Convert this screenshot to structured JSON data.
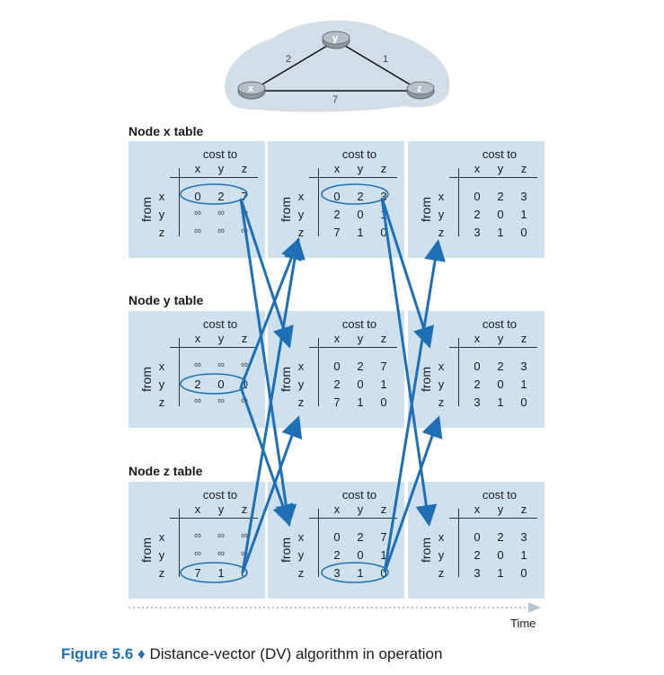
{
  "network": {
    "nodes": [
      {
        "name": "x"
      },
      {
        "name": "y"
      },
      {
        "name": "z"
      }
    ],
    "links": [
      {
        "from": "x",
        "to": "y",
        "cost": "2"
      },
      {
        "from": "y",
        "to": "z",
        "cost": "1"
      },
      {
        "from": "x",
        "to": "z",
        "cost": "7"
      }
    ]
  },
  "labels": {
    "cost_to": "cost to",
    "from": "from",
    "cols": [
      "x",
      "y",
      "z"
    ],
    "rows": [
      "x",
      "y",
      "z"
    ],
    "infinity": "∞"
  },
  "sections": [
    {
      "title": "Node x table",
      "tables": [
        [
          [
            "0",
            "2",
            "7"
          ],
          [
            "∞",
            "∞",
            "∞"
          ],
          [
            "∞",
            "∞",
            "∞"
          ]
        ],
        [
          [
            "0",
            "2",
            "3"
          ],
          [
            "2",
            "0",
            "1"
          ],
          [
            "7",
            "1",
            "0"
          ]
        ],
        [
          [
            "0",
            "2",
            "3"
          ],
          [
            "2",
            "0",
            "1"
          ],
          [
            "3",
            "1",
            "0"
          ]
        ]
      ]
    },
    {
      "title": "Node y table",
      "tables": [
        [
          [
            "∞",
            "∞",
            "∞"
          ],
          [
            "2",
            "0",
            "1"
          ],
          [
            "∞",
            "∞",
            "∞"
          ]
        ],
        [
          [
            "0",
            "2",
            "7"
          ],
          [
            "2",
            "0",
            "1"
          ],
          [
            "7",
            "1",
            "0"
          ]
        ],
        [
          [
            "0",
            "2",
            "3"
          ],
          [
            "2",
            "0",
            "1"
          ],
          [
            "3",
            "1",
            "0"
          ]
        ]
      ]
    },
    {
      "title": "Node z table",
      "tables": [
        [
          [
            "∞",
            "∞",
            "∞"
          ],
          [
            "∞",
            "∞",
            "∞"
          ],
          [
            "7",
            "1",
            "0"
          ]
        ],
        [
          [
            "0",
            "2",
            "7"
          ],
          [
            "2",
            "0",
            "1"
          ],
          [
            "3",
            "1",
            "0"
          ]
        ],
        [
          [
            "0",
            "2",
            "3"
          ],
          [
            "2",
            "0",
            "1"
          ],
          [
            "3",
            "1",
            "0"
          ]
        ]
      ]
    }
  ],
  "time_label": "Time",
  "caption": {
    "figure": "Figure 5.6",
    "separator": "♦",
    "text": "Distance-vector (DV) algorithm in operation"
  },
  "colors": {
    "panel": "#cfe0ef",
    "arrow": "#1f6fb2",
    "cloud": "#d3dde8",
    "router": "#9aa3ab"
  }
}
